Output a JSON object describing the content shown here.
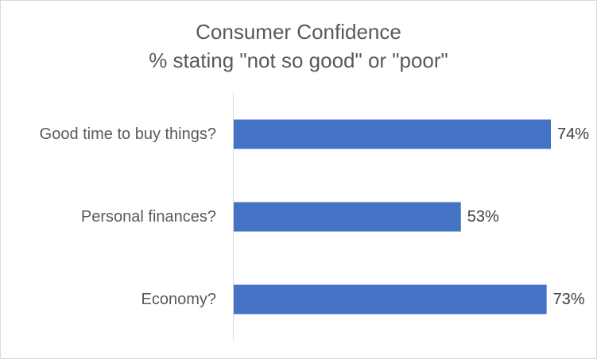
{
  "chart_data": {
    "type": "bar",
    "orientation": "horizontal",
    "title": "Consumer Confidence",
    "subtitle": "% stating \"not so good\" or \"poor\"",
    "categories": [
      "Good time to buy things?",
      "Personal finances?",
      "Economy?"
    ],
    "values": [
      74,
      53,
      73
    ],
    "value_labels": [
      "74%",
      "53%",
      "73%"
    ],
    "xlim": [
      0,
      74
    ],
    "bar_color": "#4472c4",
    "grid": false,
    "legend": "none"
  }
}
